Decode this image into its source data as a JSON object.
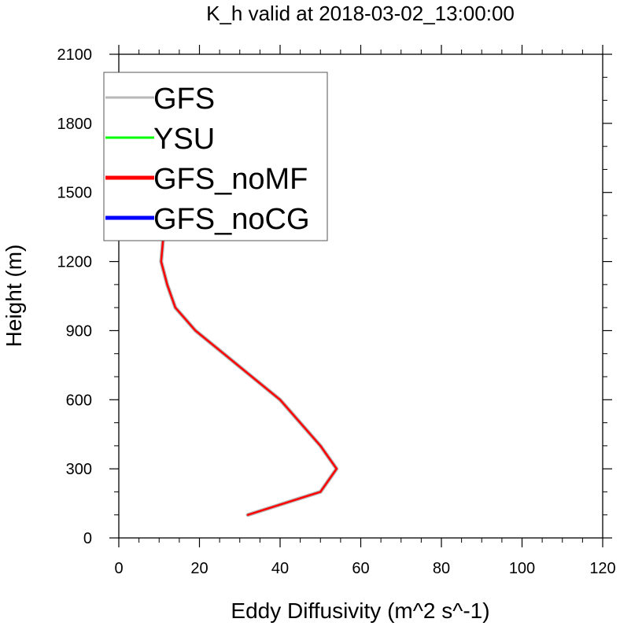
{
  "chart_data": {
    "type": "line",
    "title": "K_h valid at 2018-03-02_13:00:00",
    "xlabel": "Eddy Diffusivity (m^2 s^-1)",
    "ylabel": "Height (m)",
    "xlim": [
      0,
      120
    ],
    "ylim": [
      0,
      2100
    ],
    "x_ticks": [
      "0",
      "20",
      "40",
      "60",
      "80",
      "100",
      "120"
    ],
    "y_ticks": [
      "0",
      "300",
      "600",
      "900",
      "1200",
      "1500",
      "1800",
      "2100"
    ],
    "legend_position": "top-left",
    "grid": false,
    "series": [
      {
        "name": "GFS",
        "color": "#b8b8b8",
        "x": [
          32,
          50,
          54,
          50,
          45,
          40,
          33,
          26,
          19,
          14,
          12,
          10.5,
          11,
          12,
          13,
          14,
          15
        ],
        "y": [
          100,
          200,
          300,
          400,
          500,
          600,
          700,
          800,
          900,
          1000,
          1100,
          1200,
          1300,
          1500,
          1700,
          1900,
          2000
        ]
      },
      {
        "name": "YSU",
        "color": "#00ff00",
        "x": [],
        "y": []
      },
      {
        "name": "GFS_noMF",
        "color": "#ff0000",
        "x": [
          32,
          50,
          54,
          50,
          45,
          40,
          33,
          26,
          19,
          14,
          12,
          10.5,
          11,
          12,
          13,
          14,
          15
        ],
        "y": [
          100,
          200,
          300,
          400,
          500,
          600,
          700,
          800,
          900,
          1000,
          1100,
          1200,
          1300,
          1500,
          1700,
          1900,
          2000
        ]
      },
      {
        "name": "GFS_noCG",
        "color": "#0000ff",
        "x": [],
        "y": []
      }
    ]
  }
}
